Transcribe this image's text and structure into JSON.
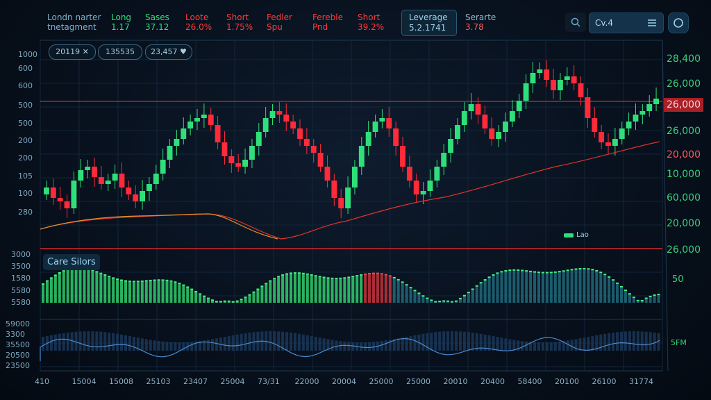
{
  "header": {
    "title_line1": "Londn narter",
    "title_line2": "tnetagment",
    "stats": [
      {
        "label": "Long",
        "value": "1.17",
        "color": "#2fe07a"
      },
      {
        "label": "Sases",
        "value": "37.12",
        "color": "#2fe07a"
      },
      {
        "label": "Loote",
        "value": "26.0%",
        "color": "#ff3a3a"
      },
      {
        "label": "Short",
        "value": "1.75%",
        "color": "#ff3a3a"
      },
      {
        "label": "Fedler",
        "value": "Spu",
        "color": "#ff3a3a"
      },
      {
        "label": "Fereble",
        "value": "Pnd",
        "color": "#ff3a3a"
      },
      {
        "label": "Short",
        "value": "39.2%",
        "color": "#ff3a3a"
      }
    ],
    "leverage": {
      "label": "Leverage",
      "value": "5.2.1741"
    },
    "serarte": {
      "label": "Serarte",
      "value": "3.78"
    },
    "search": {
      "value": "Cv.4"
    }
  },
  "chips": [
    "20119 ✕",
    "135535",
    "23,457 ♥"
  ],
  "left_axis_price": [
    "1000",
    "600",
    "600",
    "500",
    "500",
    "200",
    "200",
    "105",
    "100",
    "280"
  ],
  "right_axis_price": [
    {
      "text": "28,400",
      "color": "#3ad07a"
    },
    {
      "text": "26,000",
      "color": "#3ad07a"
    },
    {
      "text": "26,000",
      "color": "#ff5a5a",
      "highlight": true
    },
    {
      "text": "26,000",
      "color": "#3ad07a"
    },
    {
      "text": "20,000",
      "color": "#ff5a5a"
    },
    {
      "text": "10,000",
      "color": "#3ad07a"
    },
    {
      "text": "60,000",
      "color": "#3ad07a"
    },
    {
      "text": "20,000",
      "color": "#3ad07a"
    },
    {
      "text": "26,000",
      "color": "#3ad07a"
    }
  ],
  "legend_small": "Lao",
  "volume_panel": {
    "label": "Care Silors",
    "left_axis": [
      "3000",
      "3500",
      "1580",
      "5580",
      "5580"
    ],
    "right_label": "50"
  },
  "indicator_panel": {
    "left_axis": [
      "59000",
      "3300",
      "35500",
      "20500",
      "23500"
    ],
    "right_label": "5FM"
  },
  "x_axis": [
    "410",
    "15004",
    "15008",
    "25103",
    "23407",
    "25004",
    "73/31",
    "22000",
    "20004",
    "25000",
    "25000",
    "20010",
    "20400",
    "58400",
    "20100",
    "26100",
    "31774"
  ],
  "colors": {
    "up": "#2fe07a",
    "down": "#ff2a3a",
    "ma_fast": "#e0342e",
    "ma_slow": "#e0902a",
    "accent": "#3ad07a"
  }
}
